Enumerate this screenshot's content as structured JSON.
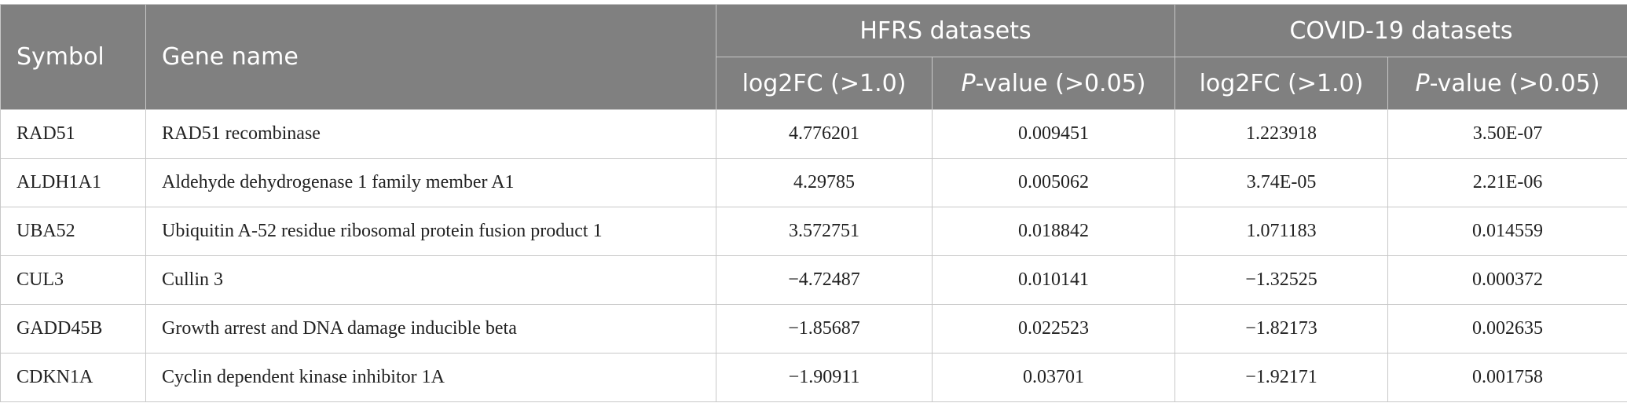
{
  "table": {
    "header": {
      "symbol": "Symbol",
      "gene_name": "Gene name",
      "group1": "HFRS datasets",
      "group2": "COVID-19 datasets",
      "sub": [
        {
          "text": "log2FC (>1.0)"
        },
        {
          "italic": "P",
          "text": "-value (>0.05)"
        },
        {
          "text": "log2FC (>1.0)"
        },
        {
          "italic": "P",
          "text": "-value (>0.05)"
        }
      ]
    },
    "rows": [
      [
        "RAD51",
        "RAD51 recombinase",
        "4.776201",
        "0.009451",
        "1.223918",
        "3.50E-07"
      ],
      [
        "ALDH1A1",
        "Aldehyde dehydrogenase 1 family member A1",
        "4.29785",
        "0.005062",
        "3.74E-05",
        "2.21E-06"
      ],
      [
        "UBA52",
        "Ubiquitin A-52 residue ribosomal protein fusion product 1",
        "3.572751",
        "0.018842",
        "1.071183",
        "0.014559"
      ],
      [
        "CUL3",
        "Cullin 3",
        "−4.72487",
        "0.010141",
        "−1.32525",
        "0.000372"
      ],
      [
        "GADD45B",
        "Growth arrest and DNA damage inducible beta",
        "−1.85687",
        "0.022523",
        "−1.82173",
        "0.002635"
      ],
      [
        "CDKN1A",
        "Cyclin dependent kinase inhibitor 1A",
        "−1.90911",
        "0.03701",
        "−1.92171",
        "0.001758"
      ]
    ]
  }
}
